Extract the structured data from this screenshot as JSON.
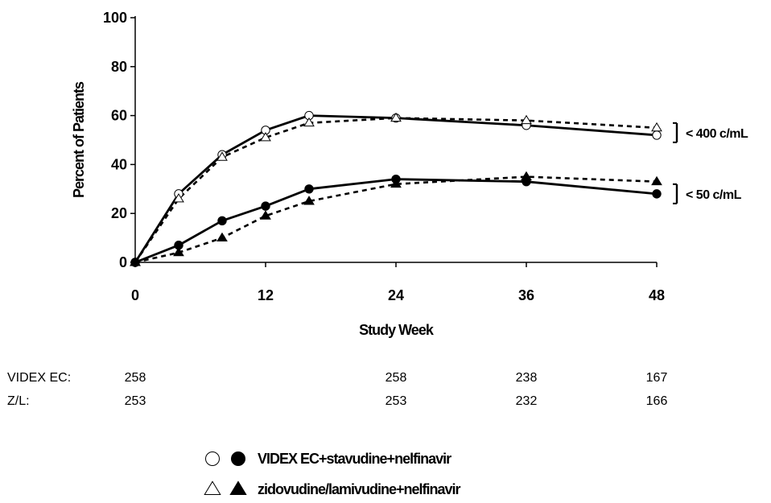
{
  "chart_data": {
    "type": "line",
    "ylabel": "Percent of Patients",
    "xlabel": "Study Week",
    "ylim": [
      0,
      100
    ],
    "xlim": [
      0,
      48
    ],
    "y_ticks": [
      0,
      20,
      40,
      60,
      80,
      100
    ],
    "x_ticks": [
      0,
      12,
      24,
      36,
      48
    ],
    "grid": false,
    "legend_position": "bottom-center",
    "series": [
      {
        "name": "VIDEX EC+stavudine+nelfinavir",
        "group": "< 400 c/mL",
        "marker": "open-circle",
        "line": "solid",
        "x": [
          0,
          4,
          8,
          12,
          16,
          24,
          36,
          48
        ],
        "values": [
          0,
          28,
          44,
          54,
          60,
          59,
          56,
          52
        ]
      },
      {
        "name": "zidovudine/lamivudine+nelfinavir",
        "group": "< 400 c/mL",
        "marker": "open-triangle",
        "line": "dashed",
        "x": [
          0,
          4,
          8,
          12,
          16,
          24,
          36,
          48
        ],
        "values": [
          0,
          26,
          43,
          51,
          57,
          59,
          58,
          55
        ]
      },
      {
        "name": "VIDEX EC+stavudine+nelfinavir",
        "group": "< 50 c/mL",
        "marker": "filled-circle",
        "line": "solid",
        "x": [
          0,
          4,
          8,
          12,
          16,
          24,
          36,
          48
        ],
        "values": [
          0,
          7,
          17,
          23,
          30,
          34,
          33,
          28
        ]
      },
      {
        "name": "zidovudine/lamivudine+nelfinavir",
        "group": "< 50 c/mL",
        "marker": "filled-triangle",
        "line": "dashed",
        "x": [
          0,
          4,
          8,
          12,
          16,
          24,
          36,
          48
        ],
        "values": [
          0,
          4,
          10,
          19,
          25,
          32,
          35,
          33
        ]
      }
    ],
    "annotations": [
      {
        "text": "< 400 c/mL",
        "y": 53
      },
      {
        "text": "< 50 c/mL",
        "y": 28
      }
    ],
    "patient_counts": [
      {
        "label": "VIDEX EC:",
        "x": [
          0,
          24,
          36,
          48
        ],
        "counts": [
          "258",
          "258",
          "238",
          "167"
        ]
      },
      {
        "label": "Z/L:",
        "x": [
          0,
          24,
          36,
          48
        ],
        "counts": [
          "253",
          "253",
          "232",
          "166"
        ]
      }
    ],
    "legend": [
      {
        "open_marker": "open-circle",
        "filled_marker": "filled-circle",
        "text": "VIDEX EC+stavudine+nelfinavir"
      },
      {
        "open_marker": "open-triangle",
        "filled_marker": "filled-triangle",
        "text": "zidovudine/lamivudine+nelfinavir"
      }
    ],
    "colors": {
      "line": "#000000",
      "background": "#ffffff"
    }
  }
}
